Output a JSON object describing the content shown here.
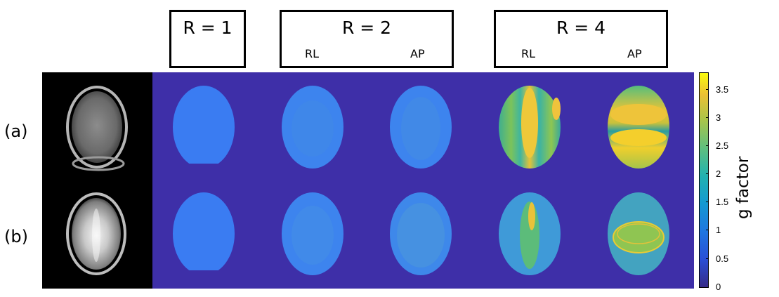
{
  "headers": [
    {
      "title": "R = 1",
      "subs": []
    },
    {
      "title": "R = 2",
      "subs": [
        "RL",
        "AP"
      ]
    },
    {
      "title": "R = 4",
      "subs": [
        "RL",
        "AP"
      ]
    }
  ],
  "row_labels": [
    "(a)",
    "(b)"
  ],
  "colorbar": {
    "label": "g factor",
    "ticks": [
      "3.5",
      "3",
      "2.5",
      "2",
      "1.5",
      "1",
      "0.5",
      "0"
    ],
    "range": [
      0,
      3.8
    ],
    "colormap": "parula"
  },
  "colors": {
    "background_map": "#3e2fa8",
    "g1": "#3a7cf2",
    "g_high": "#f5d524"
  }
}
